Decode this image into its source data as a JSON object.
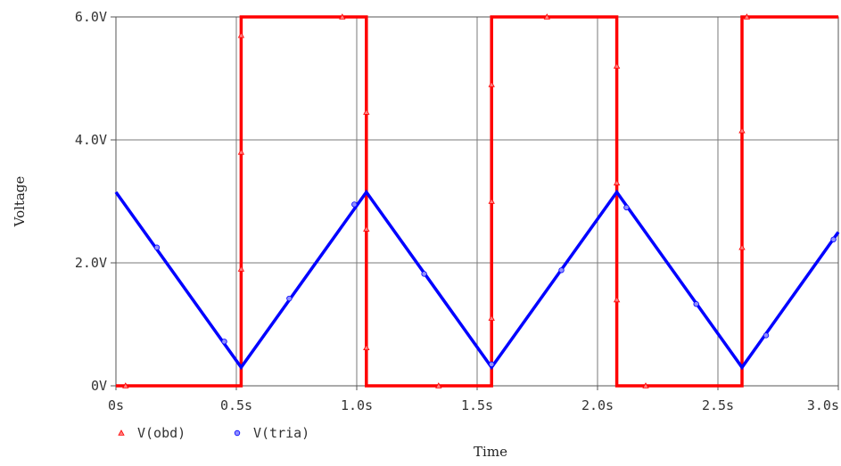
{
  "chart_data": {
    "type": "line",
    "xlabel": "Time",
    "ylabel": "Voltage",
    "xlim": [
      0,
      3.0
    ],
    "ylim": [
      0,
      6.0
    ],
    "grid": true,
    "legend_placement": "bottom-left",
    "x_ticks": [
      {
        "value": 0,
        "label": "0s"
      },
      {
        "value": 0.5,
        "label": "0.5s"
      },
      {
        "value": 1.0,
        "label": "1.0s"
      },
      {
        "value": 1.5,
        "label": "1.5s"
      },
      {
        "value": 2.0,
        "label": "2.0s"
      },
      {
        "value": 2.5,
        "label": "2.5s"
      },
      {
        "value": 3.0,
        "label": "3.0s"
      }
    ],
    "y_ticks": [
      {
        "value": 0,
        "label": "0V"
      },
      {
        "value": 2.0,
        "label": "2.0V"
      },
      {
        "value": 4.0,
        "label": "4.0V"
      },
      {
        "value": 6.0,
        "label": "6.0V"
      }
    ],
    "series": [
      {
        "name": "V(obd)",
        "color": "#ff0000",
        "marker": "triangle",
        "x": [
          0.0,
          0.52,
          0.52,
          1.04,
          1.04,
          1.56,
          1.56,
          2.08,
          2.08,
          2.6,
          2.6,
          3.0
        ],
        "y": [
          0.0,
          0.0,
          6.0,
          6.0,
          0.0,
          0.0,
          6.0,
          6.0,
          0.0,
          0.0,
          6.0,
          6.0
        ],
        "marker_points": [
          [
            0.04,
            0.0
          ],
          [
            0.52,
            1.9
          ],
          [
            0.52,
            3.8
          ],
          [
            0.52,
            5.7
          ],
          [
            0.94,
            6.0
          ],
          [
            1.04,
            4.45
          ],
          [
            1.04,
            2.55
          ],
          [
            1.04,
            0.62
          ],
          [
            1.34,
            0.0
          ],
          [
            1.56,
            1.1
          ],
          [
            1.56,
            3.0
          ],
          [
            1.56,
            4.9
          ],
          [
            1.79,
            6.0
          ],
          [
            2.08,
            5.2
          ],
          [
            2.08,
            3.3
          ],
          [
            2.08,
            1.4
          ],
          [
            2.2,
            0.0
          ],
          [
            2.6,
            2.25
          ],
          [
            2.6,
            4.15
          ],
          [
            2.62,
            6.0
          ]
        ]
      },
      {
        "name": "V(tria)",
        "color": "#0000ff",
        "marker": "circle",
        "x": [
          0.0,
          0.52,
          1.04,
          1.56,
          2.08,
          2.6,
          3.0
        ],
        "y": [
          3.15,
          0.3,
          3.15,
          0.3,
          3.15,
          0.3,
          2.5
        ],
        "marker_points": [
          [
            0.17,
            2.25
          ],
          [
            0.45,
            0.72
          ],
          [
            0.72,
            1.42
          ],
          [
            0.99,
            2.95
          ],
          [
            1.28,
            1.82
          ],
          [
            1.56,
            0.35
          ],
          [
            1.85,
            1.88
          ],
          [
            2.12,
            2.9
          ],
          [
            2.41,
            1.33
          ],
          [
            2.7,
            0.82
          ],
          [
            2.98,
            2.38
          ]
        ]
      }
    ]
  }
}
